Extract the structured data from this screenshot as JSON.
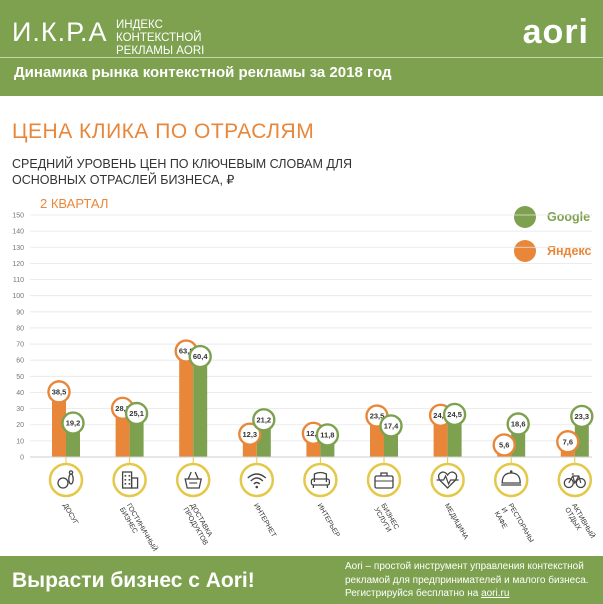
{
  "header": {
    "brand": "И.К.Р.А",
    "brand_sub": "ИНДЕКС КОНТЕКСТНОЙ РЕКЛАМЫ AORI",
    "logo": "aori",
    "title": "Динамика рынка контекстной рекламы за 2018 год"
  },
  "section_title": "ЦЕНА КЛИКА ПО ОТРАСЛЯМ",
  "subtitle": "СРЕДНИЙ УРОВЕНЬ ЦЕН ПО КЛЮЧЕВЫМ СЛОВАМ ДЛЯ ОСНОВНЫХ ОТРАСЛЕЙ БИЗНЕСА, ₽",
  "period": "2 КВАРТАЛ",
  "legend": {
    "google": "Google",
    "yandex": "Яндекс"
  },
  "colors": {
    "google": "#7da14f",
    "yandex": "#e8873a",
    "icon_ring": "#e3c84a",
    "header_bg": "#7da14f"
  },
  "chart_data": {
    "type": "bar",
    "categories": [
      "ДОСУГ",
      "ГОСТИНИЧНЫЙ БИЗНЕС",
      "ДОСТАВКА ПРОДУКТОВ",
      "ИНТЕРНЕТ",
      "ИНТЕРЬЕР",
      "БИЗНЕС УСЛУГИ",
      "МЕДИЦИНА",
      "РЕСТОРАНЫ И КАФЕ",
      "АКТИВНЫЙ ОТДЫХ"
    ],
    "category_icons": [
      "bowling-icon",
      "hotel-building-icon",
      "grocery-basket-icon",
      "wifi-icon",
      "armchair-icon",
      "briefcase-icon",
      "heart-pulse-icon",
      "food-service-cloche-icon",
      "bicycle-icon"
    ],
    "series": [
      {
        "name": "Яндекс",
        "values": [
          38.5,
          28.3,
          63.8,
          12.3,
          12.8,
          23.5,
          24.0,
          5.6,
          7.6
        ]
      },
      {
        "name": "Google",
        "values": [
          19.2,
          25.1,
          60.4,
          21.2,
          11.8,
          17.4,
          24.5,
          18.6,
          23.3
        ]
      }
    ],
    "value_labels": {
      "Яндекс": [
        "38,5",
        "28,3",
        "63,8",
        "12,3",
        "12,8",
        "23,5",
        "24,0",
        "5,6",
        "7,6"
      ],
      "Google": [
        "19,2",
        "25,1",
        "60,4",
        "21,2",
        "11,8",
        "17,4",
        "24,5",
        "18,6",
        "23,3"
      ]
    },
    "ylim": [
      0,
      150
    ],
    "yticks": [
      "0",
      "10",
      "20",
      "30",
      "40",
      "50",
      "60",
      "70",
      "80",
      "90",
      "100",
      "110",
      "120",
      "130",
      "140",
      "150"
    ],
    "grid": true,
    "legend_position": "top-right"
  },
  "footer": {
    "cta": "Вырасти бизнес с Aori!",
    "text": "Aori – простой инструмент управления контекстной рекламой для предпринимателей и малого бизнеса. Регистрируйся бесплатно на",
    "link": "aori.ru"
  }
}
